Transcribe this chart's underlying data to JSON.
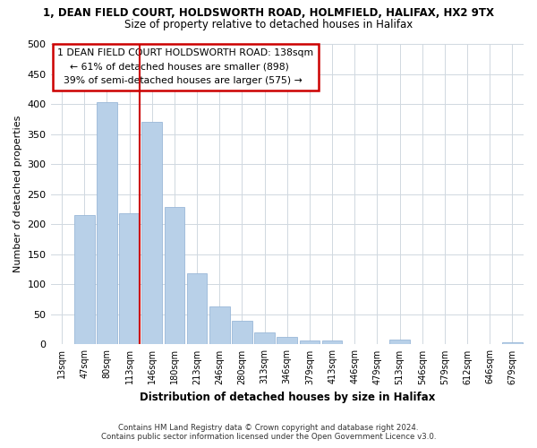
{
  "title": "1, DEAN FIELD COURT, HOLDSWORTH ROAD, HOLMFIELD, HALIFAX, HX2 9TX",
  "subtitle": "Size of property relative to detached houses in Halifax",
  "xlabel": "Distribution of detached houses by size in Halifax",
  "ylabel": "Number of detached properties",
  "bar_labels": [
    "13sqm",
    "47sqm",
    "80sqm",
    "113sqm",
    "146sqm",
    "180sqm",
    "213sqm",
    "246sqm",
    "280sqm",
    "313sqm",
    "346sqm",
    "379sqm",
    "413sqm",
    "446sqm",
    "479sqm",
    "513sqm",
    "546sqm",
    "579sqm",
    "612sqm",
    "646sqm",
    "679sqm"
  ],
  "bar_values": [
    0,
    215,
    403,
    218,
    371,
    229,
    119,
    63,
    39,
    20,
    13,
    6,
    7,
    0,
    0,
    8,
    0,
    0,
    0,
    0,
    3
  ],
  "bar_color": "#b8d0e8",
  "bar_edge_color": "#9ab8d8",
  "vline_color": "#cc0000",
  "annotation_title": "1 DEAN FIELD COURT HOLDSWORTH ROAD: 138sqm",
  "annotation_line1": "← 61% of detached houses are smaller (898)",
  "annotation_line2": "39% of semi-detached houses are larger (575) →",
  "annotation_box_color": "#ffffff",
  "annotation_box_edge": "#cc0000",
  "ylim": [
    0,
    500
  ],
  "yticks": [
    0,
    50,
    100,
    150,
    200,
    250,
    300,
    350,
    400,
    450,
    500
  ],
  "footer1": "Contains HM Land Registry data © Crown copyright and database right 2024.",
  "footer2": "Contains public sector information licensed under the Open Government Licence v3.0.",
  "background_color": "#ffffff",
  "grid_color": "#d0d8e0"
}
